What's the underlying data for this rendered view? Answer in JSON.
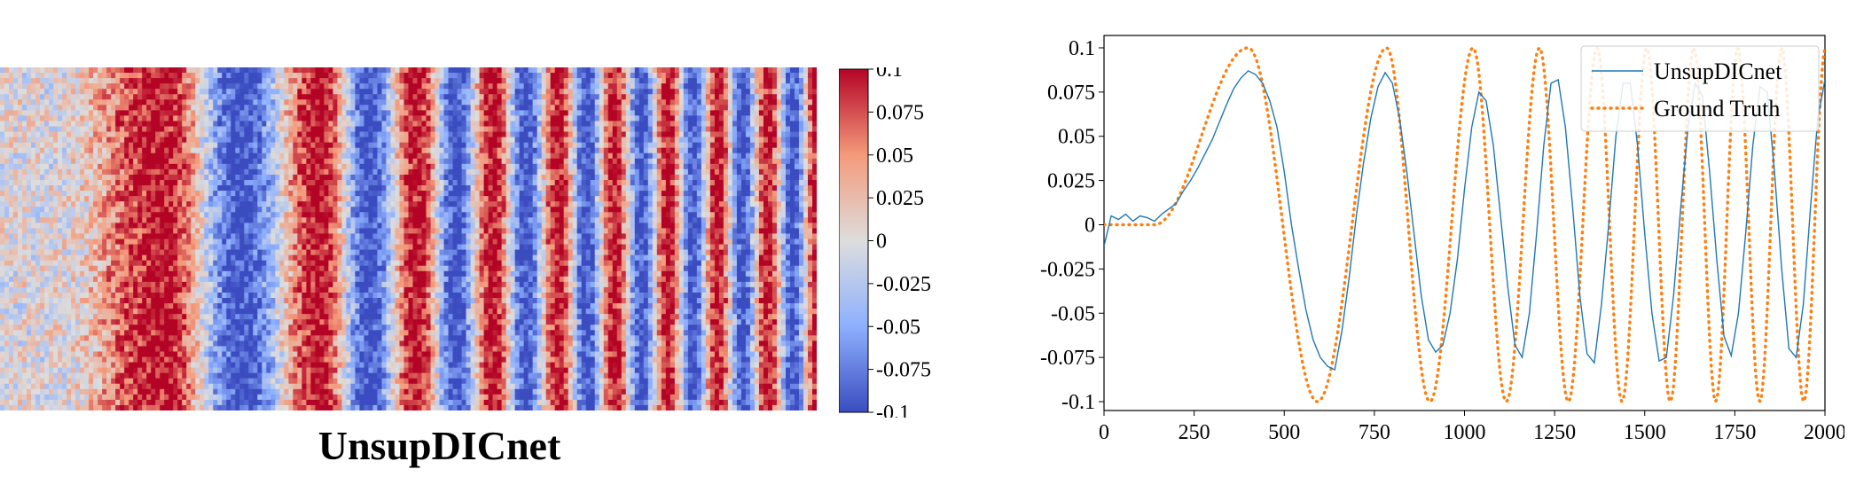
{
  "heatmap": {
    "title": "UnsupDICnet",
    "colormap": [
      "#3b4cc0",
      "#8db0fe",
      "#dddddd",
      "#f49a7b",
      "#b40426"
    ],
    "colorbar": {
      "ticks": [
        0.1,
        0.075,
        0.05,
        0.025,
        0,
        -0.025,
        -0.05,
        -0.075,
        -0.1
      ],
      "tick_labels": [
        "0.1",
        "0.075",
        "0.05",
        "0.025",
        "0",
        "-0.025",
        "-0.05",
        "-0.075",
        "-0.1"
      ],
      "range": [
        -0.1,
        0.1
      ]
    }
  },
  "chart_data": {
    "type": "line",
    "title": "",
    "xlabel": "",
    "ylabel": "",
    "xlim": [
      0,
      2000
    ],
    "ylim": [
      -0.105,
      0.107
    ],
    "x_ticks": [
      0,
      250,
      500,
      750,
      1000,
      1250,
      1500,
      1750,
      2000
    ],
    "x_tick_labels": [
      "0",
      "250",
      "500",
      "750",
      "1000",
      "1250",
      "1500",
      "1750",
      "2000"
    ],
    "y_ticks": [
      0.1,
      0.075,
      0.05,
      0.025,
      0,
      -0.025,
      -0.05,
      -0.075,
      -0.1
    ],
    "y_tick_labels": [
      "0.1",
      "0.075",
      "0.05",
      "0.025",
      "0",
      "-0.025",
      "-0.05",
      "-0.075",
      "-0.1"
    ],
    "grid": false,
    "legend": "top-right",
    "series": [
      {
        "name": "UnsupDICnet",
        "color": "#1f77b4",
        "style": "solid",
        "x": [
          0,
          20,
          40,
          60,
          80,
          100,
          120,
          140,
          160,
          180,
          200,
          220,
          240,
          260,
          280,
          300,
          320,
          340,
          360,
          380,
          400,
          420,
          440,
          460,
          480,
          500,
          520,
          540,
          560,
          580,
          600,
          620,
          640,
          660,
          680,
          700,
          720,
          740,
          760,
          780,
          800,
          820,
          840,
          860,
          880,
          900,
          920,
          940,
          960,
          980,
          1000,
          1020,
          1040,
          1060,
          1080,
          1100,
          1120,
          1140,
          1160,
          1180,
          1200,
          1220,
          1240,
          1260,
          1280,
          1300,
          1320,
          1340,
          1360,
          1380,
          1400,
          1420,
          1440,
          1460,
          1480,
          1500,
          1520,
          1540,
          1560,
          1580,
          1600,
          1620,
          1640,
          1660,
          1680,
          1700,
          1720,
          1740,
          1760,
          1780,
          1800,
          1820,
          1840,
          1860,
          1880,
          1900,
          1920,
          1940,
          1960,
          1980,
          2000
        ],
        "y": [
          -0.012,
          0.005,
          0.003,
          0.006,
          0.002,
          0.005,
          0.004,
          0.002,
          0.006,
          0.009,
          0.012,
          0.019,
          0.025,
          0.032,
          0.04,
          0.048,
          0.058,
          0.068,
          0.077,
          0.083,
          0.087,
          0.085,
          0.08,
          0.07,
          0.055,
          0.03,
          0.0,
          -0.025,
          -0.048,
          -0.065,
          -0.075,
          -0.08,
          -0.082,
          -0.06,
          -0.03,
          0.005,
          0.035,
          0.06,
          0.078,
          0.086,
          0.08,
          0.06,
          0.03,
          -0.005,
          -0.04,
          -0.065,
          -0.072,
          -0.068,
          -0.05,
          -0.02,
          0.02,
          0.055,
          0.075,
          0.07,
          0.045,
          0.005,
          -0.035,
          -0.068,
          -0.075,
          -0.05,
          -0.005,
          0.045,
          0.08,
          0.082,
          0.055,
          0.01,
          -0.04,
          -0.073,
          -0.078,
          -0.045,
          0.0,
          0.05,
          0.08,
          0.08,
          0.045,
          -0.005,
          -0.05,
          -0.077,
          -0.075,
          -0.04,
          0.01,
          0.055,
          0.08,
          0.073,
          0.03,
          -0.02,
          -0.063,
          -0.074,
          -0.05,
          -0.005,
          0.045,
          0.078,
          0.075,
          0.03,
          -0.025,
          -0.07,
          -0.075,
          -0.045,
          0.01,
          0.06,
          0.082
        ]
      },
      {
        "name": "Ground Truth",
        "color": "#ff7f0e",
        "style": "dotted",
        "model": {
          "onset": 140,
          "amplitude": 0.1,
          "peaks": [
            400,
            784,
            1024,
            1208,
            1368,
            1506,
            1636,
            1758,
            1880
          ]
        }
      }
    ]
  }
}
